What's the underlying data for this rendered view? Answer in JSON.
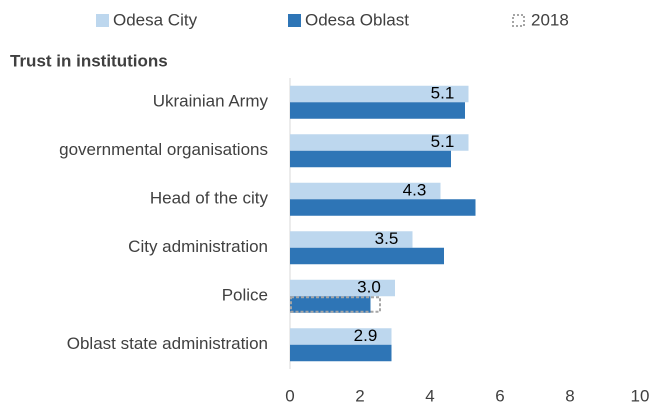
{
  "chart_data": {
    "type": "bar",
    "orientation": "horizontal",
    "subtitle": "Trust in institutions",
    "categories": [
      "Ukrainian Army",
      "governmental organisations",
      "Head of the city",
      "City administration",
      "Police",
      "Oblast state administration"
    ],
    "series": [
      {
        "name": "Odesa City",
        "color": "#bdd7ee",
        "values": [
          5.1,
          5.1,
          4.3,
          3.5,
          3.0,
          2.9
        ],
        "value_labels": [
          "5.1",
          "5.1",
          "4.3",
          "3.5",
          "3.0",
          "2.9"
        ]
      },
      {
        "name": "Odesa Oblast",
        "color": "#2e75b6",
        "values": [
          5.0,
          4.6,
          5.3,
          4.4,
          2.3,
          2.9
        ]
      },
      {
        "name": "2018",
        "color": "#a6a6a6",
        "style": "dashed",
        "values": [
          null,
          null,
          null,
          null,
          2.6,
          null
        ]
      }
    ],
    "xlim": [
      0,
      10
    ],
    "xticks": [
      0,
      2,
      4,
      6,
      8,
      10
    ],
    "legend": "top"
  }
}
